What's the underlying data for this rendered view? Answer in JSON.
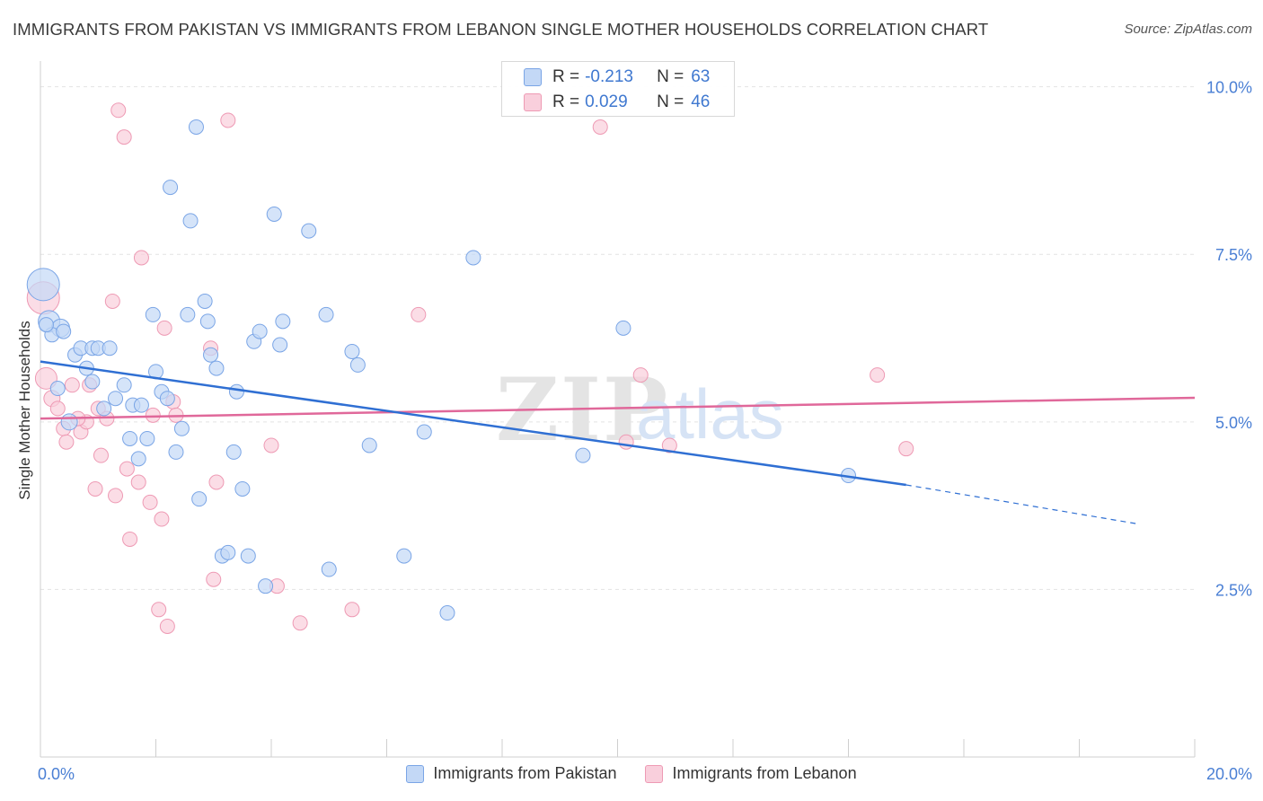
{
  "title": "IMMIGRANTS FROM PAKISTAN VS IMMIGRANTS FROM LEBANON SINGLE MOTHER HOUSEHOLDS CORRELATION CHART",
  "source": "Source: ZipAtlas.com",
  "watermark": "ZIPatlas",
  "legend_box": {
    "rows": [
      {
        "r_label": "R =",
        "r_value": "-0.213",
        "n_label": "N =",
        "n_value": "63"
      },
      {
        "r_label": "R =",
        "r_value": "0.029",
        "n_label": "N =",
        "n_value": "46"
      }
    ]
  },
  "bottom_legend": {
    "pakistan": "Immigrants from Pakistan",
    "lebanon": "Immigrants from Lebanon"
  },
  "colors": {
    "pakistan_fill": "#c3d8f6",
    "pakistan_stroke": "#7aa5e6",
    "pakistan_line": "#2f6fd3",
    "lebanon_fill": "#f9cfdc",
    "lebanon_stroke": "#ee9ab4",
    "lebanon_line": "#e0689a",
    "tick_label": "#4a7fd4",
    "grid": "#e3e3e3"
  },
  "chart_data": {
    "type": "scatter",
    "title": "IMMIGRANTS FROM PAKISTAN VS IMMIGRANTS FROM LEBANON SINGLE MOTHER HOUSEHOLDS CORRELATION CHART",
    "xlabel": "",
    "ylabel": "Single Mother Households",
    "xlim": [
      0,
      20
    ],
    "ylim": [
      0,
      10.25
    ],
    "x_tick_labels": [
      "0.0%",
      "20.0%"
    ],
    "y_ticks": [
      {
        "value": 2.5,
        "label": "2.5%"
      },
      {
        "value": 5.0,
        "label": "5.0%"
      },
      {
        "value": 7.5,
        "label": "7.5%"
      },
      {
        "value": 10.0,
        "label": "10.0%"
      }
    ],
    "grid": true,
    "legend_position": "top-center",
    "series": [
      {
        "name": "Immigrants from Pakistan",
        "r": -0.213,
        "n": 63,
        "trend": {
          "x0": 0,
          "y0": 5.9,
          "x1": 15.0,
          "y1": 4.06,
          "dash_to_x": 19.0,
          "dash_to_y": 3.48
        },
        "points": [
          [
            0.05,
            7.05,
            18
          ],
          [
            0.15,
            6.5,
            12
          ],
          [
            0.35,
            6.4,
            10
          ],
          [
            0.2,
            6.3,
            8
          ],
          [
            0.3,
            5.5,
            8
          ],
          [
            0.5,
            5.0,
            9
          ],
          [
            0.6,
            6.0,
            8
          ],
          [
            0.7,
            6.1,
            8
          ],
          [
            0.8,
            5.8,
            8
          ],
          [
            0.9,
            5.6,
            8
          ],
          [
            0.9,
            6.1,
            8
          ],
          [
            1.0,
            6.1,
            8
          ],
          [
            1.2,
            6.1,
            8
          ],
          [
            1.1,
            5.2,
            8
          ],
          [
            1.3,
            5.35,
            8
          ],
          [
            1.45,
            5.55,
            8
          ],
          [
            1.55,
            4.75,
            8
          ],
          [
            1.6,
            5.25,
            8
          ],
          [
            1.7,
            4.45,
            8
          ],
          [
            1.75,
            5.25,
            8
          ],
          [
            1.85,
            4.75,
            8
          ],
          [
            1.95,
            6.6,
            8
          ],
          [
            2.0,
            5.75,
            8
          ],
          [
            2.1,
            5.45,
            8
          ],
          [
            2.2,
            5.35,
            8
          ],
          [
            2.25,
            8.5,
            8
          ],
          [
            2.35,
            4.55,
            8
          ],
          [
            2.45,
            4.9,
            8
          ],
          [
            2.55,
            6.6,
            8
          ],
          [
            2.6,
            8.0,
            8
          ],
          [
            2.7,
            9.4,
            8
          ],
          [
            2.75,
            3.85,
            8
          ],
          [
            2.85,
            6.8,
            8
          ],
          [
            2.9,
            6.5,
            8
          ],
          [
            2.95,
            6.0,
            8
          ],
          [
            3.05,
            5.8,
            8
          ],
          [
            3.15,
            3.0,
            8
          ],
          [
            3.25,
            3.05,
            8
          ],
          [
            3.35,
            4.55,
            8
          ],
          [
            3.4,
            5.45,
            8
          ],
          [
            3.5,
            4.0,
            8
          ],
          [
            3.6,
            3.0,
            8
          ],
          [
            3.7,
            6.2,
            8
          ],
          [
            3.8,
            6.35,
            8
          ],
          [
            3.9,
            2.55,
            8
          ],
          [
            4.05,
            8.1,
            8
          ],
          [
            4.15,
            6.15,
            8
          ],
          [
            4.2,
            6.5,
            8
          ],
          [
            4.65,
            7.85,
            8
          ],
          [
            4.95,
            6.6,
            8
          ],
          [
            5.0,
            2.8,
            8
          ],
          [
            5.4,
            6.05,
            8
          ],
          [
            5.5,
            5.85,
            8
          ],
          [
            5.7,
            4.65,
            8
          ],
          [
            6.3,
            3.0,
            8
          ],
          [
            6.65,
            4.85,
            8
          ],
          [
            7.05,
            2.15,
            8
          ],
          [
            7.5,
            7.45,
            8
          ],
          [
            9.4,
            4.5,
            8
          ],
          [
            10.1,
            6.4,
            8
          ],
          [
            14.0,
            4.2,
            8
          ],
          [
            0.4,
            6.35,
            8
          ],
          [
            0.1,
            6.45,
            8
          ]
        ]
      },
      {
        "name": "Immigrants from Lebanon",
        "r": 0.029,
        "n": 46,
        "trend": {
          "x0": 0,
          "y0": 5.05,
          "x1": 20.0,
          "y1": 5.36
        },
        "points": [
          [
            0.05,
            6.85,
            18
          ],
          [
            0.1,
            5.65,
            12
          ],
          [
            0.2,
            5.35,
            9
          ],
          [
            0.3,
            5.2,
            8
          ],
          [
            0.4,
            4.9,
            8
          ],
          [
            0.45,
            4.7,
            8
          ],
          [
            0.55,
            5.55,
            8
          ],
          [
            0.7,
            4.85,
            8
          ],
          [
            0.8,
            5.0,
            8
          ],
          [
            0.85,
            5.55,
            8
          ],
          [
            0.95,
            4.0,
            8
          ],
          [
            1.0,
            5.2,
            8
          ],
          [
            1.05,
            4.5,
            8
          ],
          [
            1.15,
            5.05,
            8
          ],
          [
            1.25,
            6.8,
            8
          ],
          [
            1.3,
            3.9,
            8
          ],
          [
            1.35,
            9.65,
            8
          ],
          [
            1.45,
            9.25,
            8
          ],
          [
            1.5,
            4.3,
            8
          ],
          [
            1.55,
            3.25,
            8
          ],
          [
            1.7,
            4.1,
            8
          ],
          [
            1.75,
            7.45,
            8
          ],
          [
            1.9,
            3.8,
            8
          ],
          [
            1.95,
            5.1,
            8
          ],
          [
            2.05,
            2.2,
            8
          ],
          [
            2.1,
            3.55,
            8
          ],
          [
            2.15,
            6.4,
            8
          ],
          [
            2.2,
            1.95,
            8
          ],
          [
            2.3,
            5.3,
            8
          ],
          [
            2.95,
            6.1,
            8
          ],
          [
            3.0,
            2.65,
            8
          ],
          [
            3.05,
            4.1,
            8
          ],
          [
            3.25,
            9.5,
            8
          ],
          [
            4.0,
            4.65,
            8
          ],
          [
            4.1,
            2.55,
            8
          ],
          [
            4.5,
            2.0,
            8
          ],
          [
            5.4,
            2.2,
            8
          ],
          [
            6.55,
            6.6,
            8
          ],
          [
            9.7,
            9.4,
            8
          ],
          [
            10.15,
            4.7,
            8
          ],
          [
            10.4,
            5.7,
            8
          ],
          [
            10.9,
            4.65,
            8
          ],
          [
            14.5,
            5.7,
            8
          ],
          [
            15.0,
            4.6,
            8
          ],
          [
            0.65,
            5.05,
            8
          ],
          [
            2.35,
            5.1,
            8
          ]
        ]
      }
    ]
  }
}
